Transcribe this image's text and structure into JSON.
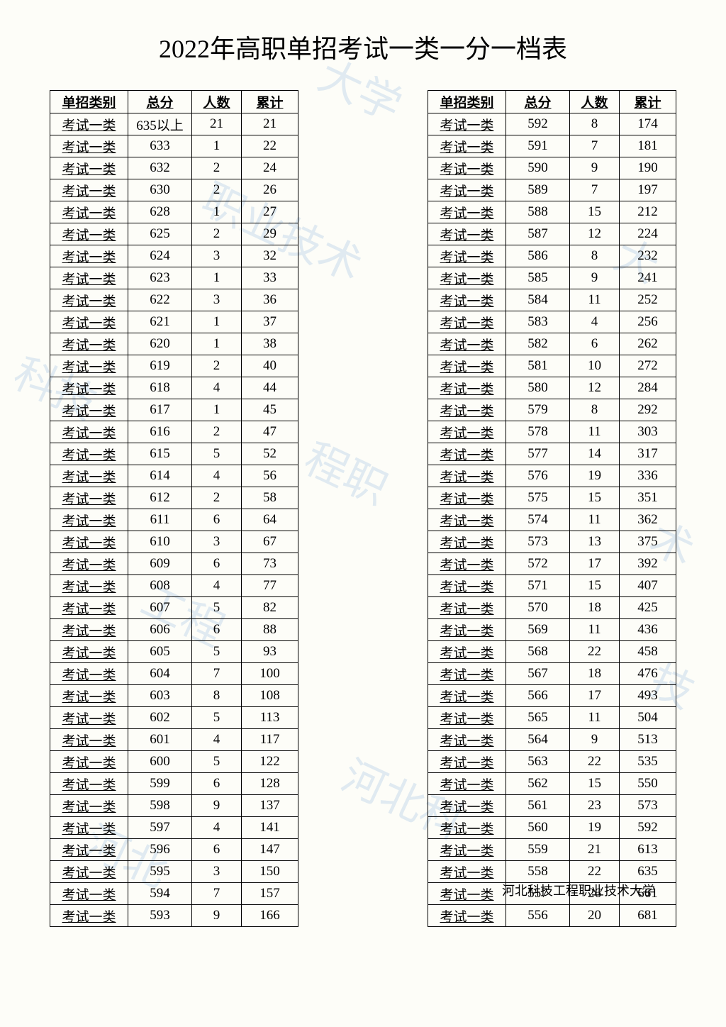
{
  "title": "2022年高职单招考试一类一分一档表",
  "footer": "河北科技工程职业技术大学",
  "watermark_text": "河北科技工程职业技术大学",
  "columns": [
    "单招类别",
    "总分",
    "人数",
    "累计"
  ],
  "category_label": "考试一类",
  "left_table": {
    "rows": [
      {
        "score": "635以上",
        "count": "21",
        "cumulative": "21"
      },
      {
        "score": "633",
        "count": "1",
        "cumulative": "22"
      },
      {
        "score": "632",
        "count": "2",
        "cumulative": "24"
      },
      {
        "score": "630",
        "count": "2",
        "cumulative": "26"
      },
      {
        "score": "628",
        "count": "1",
        "cumulative": "27"
      },
      {
        "score": "625",
        "count": "2",
        "cumulative": "29"
      },
      {
        "score": "624",
        "count": "3",
        "cumulative": "32"
      },
      {
        "score": "623",
        "count": "1",
        "cumulative": "33"
      },
      {
        "score": "622",
        "count": "3",
        "cumulative": "36"
      },
      {
        "score": "621",
        "count": "1",
        "cumulative": "37"
      },
      {
        "score": "620",
        "count": "1",
        "cumulative": "38"
      },
      {
        "score": "619",
        "count": "2",
        "cumulative": "40"
      },
      {
        "score": "618",
        "count": "4",
        "cumulative": "44"
      },
      {
        "score": "617",
        "count": "1",
        "cumulative": "45"
      },
      {
        "score": "616",
        "count": "2",
        "cumulative": "47"
      },
      {
        "score": "615",
        "count": "5",
        "cumulative": "52"
      },
      {
        "score": "614",
        "count": "4",
        "cumulative": "56"
      },
      {
        "score": "612",
        "count": "2",
        "cumulative": "58"
      },
      {
        "score": "611",
        "count": "6",
        "cumulative": "64"
      },
      {
        "score": "610",
        "count": "3",
        "cumulative": "67"
      },
      {
        "score": "609",
        "count": "6",
        "cumulative": "73"
      },
      {
        "score": "608",
        "count": "4",
        "cumulative": "77"
      },
      {
        "score": "607",
        "count": "5",
        "cumulative": "82"
      },
      {
        "score": "606",
        "count": "6",
        "cumulative": "88"
      },
      {
        "score": "605",
        "count": "5",
        "cumulative": "93"
      },
      {
        "score": "604",
        "count": "7",
        "cumulative": "100"
      },
      {
        "score": "603",
        "count": "8",
        "cumulative": "108"
      },
      {
        "score": "602",
        "count": "5",
        "cumulative": "113"
      },
      {
        "score": "601",
        "count": "4",
        "cumulative": "117"
      },
      {
        "score": "600",
        "count": "5",
        "cumulative": "122"
      },
      {
        "score": "599",
        "count": "6",
        "cumulative": "128"
      },
      {
        "score": "598",
        "count": "9",
        "cumulative": "137"
      },
      {
        "score": "597",
        "count": "4",
        "cumulative": "141"
      },
      {
        "score": "596",
        "count": "6",
        "cumulative": "147"
      },
      {
        "score": "595",
        "count": "3",
        "cumulative": "150"
      },
      {
        "score": "594",
        "count": "7",
        "cumulative": "157"
      },
      {
        "score": "593",
        "count": "9",
        "cumulative": "166"
      }
    ]
  },
  "right_table": {
    "rows": [
      {
        "score": "592",
        "count": "8",
        "cumulative": "174"
      },
      {
        "score": "591",
        "count": "7",
        "cumulative": "181"
      },
      {
        "score": "590",
        "count": "9",
        "cumulative": "190"
      },
      {
        "score": "589",
        "count": "7",
        "cumulative": "197"
      },
      {
        "score": "588",
        "count": "15",
        "cumulative": "212"
      },
      {
        "score": "587",
        "count": "12",
        "cumulative": "224"
      },
      {
        "score": "586",
        "count": "8",
        "cumulative": "232"
      },
      {
        "score": "585",
        "count": "9",
        "cumulative": "241"
      },
      {
        "score": "584",
        "count": "11",
        "cumulative": "252"
      },
      {
        "score": "583",
        "count": "4",
        "cumulative": "256"
      },
      {
        "score": "582",
        "count": "6",
        "cumulative": "262"
      },
      {
        "score": "581",
        "count": "10",
        "cumulative": "272"
      },
      {
        "score": "580",
        "count": "12",
        "cumulative": "284"
      },
      {
        "score": "579",
        "count": "8",
        "cumulative": "292"
      },
      {
        "score": "578",
        "count": "11",
        "cumulative": "303"
      },
      {
        "score": "577",
        "count": "14",
        "cumulative": "317"
      },
      {
        "score": "576",
        "count": "19",
        "cumulative": "336"
      },
      {
        "score": "575",
        "count": "15",
        "cumulative": "351"
      },
      {
        "score": "574",
        "count": "11",
        "cumulative": "362"
      },
      {
        "score": "573",
        "count": "13",
        "cumulative": "375"
      },
      {
        "score": "572",
        "count": "17",
        "cumulative": "392"
      },
      {
        "score": "571",
        "count": "15",
        "cumulative": "407"
      },
      {
        "score": "570",
        "count": "18",
        "cumulative": "425"
      },
      {
        "score": "569",
        "count": "11",
        "cumulative": "436"
      },
      {
        "score": "568",
        "count": "22",
        "cumulative": "458"
      },
      {
        "score": "567",
        "count": "18",
        "cumulative": "476"
      },
      {
        "score": "566",
        "count": "17",
        "cumulative": "493"
      },
      {
        "score": "565",
        "count": "11",
        "cumulative": "504"
      },
      {
        "score": "564",
        "count": "9",
        "cumulative": "513"
      },
      {
        "score": "563",
        "count": "22",
        "cumulative": "535"
      },
      {
        "score": "562",
        "count": "15",
        "cumulative": "550"
      },
      {
        "score": "561",
        "count": "23",
        "cumulative": "573"
      },
      {
        "score": "560",
        "count": "19",
        "cumulative": "592"
      },
      {
        "score": "559",
        "count": "21",
        "cumulative": "613"
      },
      {
        "score": "558",
        "count": "22",
        "cumulative": "635"
      },
      {
        "score": "557",
        "count": "26",
        "cumulative": "661"
      },
      {
        "score": "556",
        "count": "20",
        "cumulative": "681"
      }
    ]
  }
}
